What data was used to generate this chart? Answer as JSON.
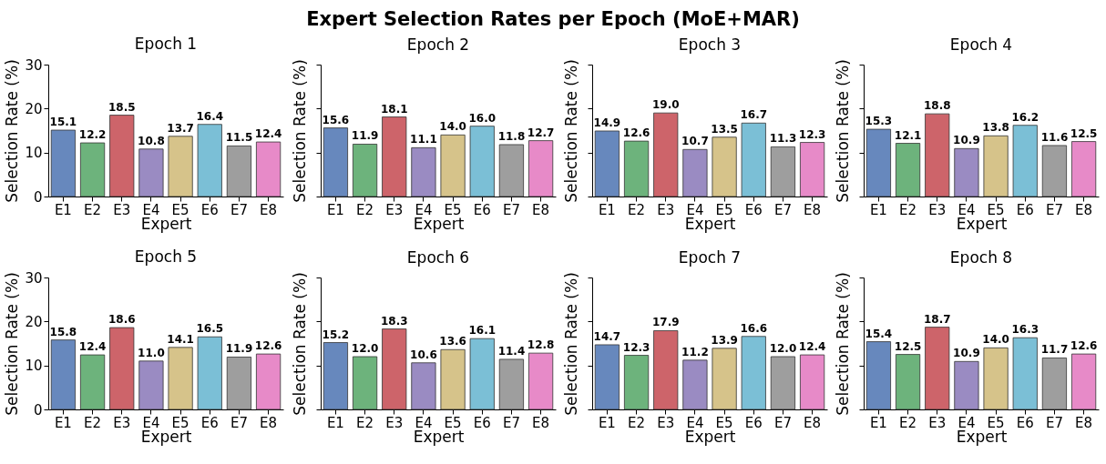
{
  "chart_data": [
    {
      "type": "bar",
      "title": "Epoch 1",
      "annotations": [
        "Expert Selection Rates per Epoch (MoE+MAR)"
      ],
      "xlabel": "Expert",
      "ylabel": "Selection Rate (%)",
      "categories": [
        "E1",
        "E2",
        "E3",
        "E4",
        "E5",
        "E6",
        "E7",
        "E8"
      ],
      "values": [
        15.1,
        12.2,
        18.5,
        10.8,
        13.7,
        16.4,
        11.5,
        12.4
      ],
      "value_labels": [
        "15.1",
        "12.2",
        "18.5",
        "10.8",
        "13.7",
        "16.4",
        "11.5",
        "12.4"
      ],
      "colors": [
        "#6788bd",
        "#6db37c",
        "#cd646a",
        "#9a8bc2",
        "#d6c38a",
        "#7bbfd6",
        "#9e9e9e",
        "#e78ac8"
      ],
      "ylim": [
        0,
        30
      ],
      "yticks": [
        0,
        10,
        20,
        30
      ]
    },
    {
      "type": "bar",
      "title": "Epoch 2",
      "xlabel": "Expert",
      "ylabel": "Selection Rate (%)",
      "categories": [
        "E1",
        "E2",
        "E3",
        "E4",
        "E5",
        "E6",
        "E7",
        "E8"
      ],
      "values": [
        15.6,
        11.9,
        18.1,
        11.1,
        14.0,
        16.0,
        11.8,
        12.7
      ],
      "value_labels": [
        "15.6",
        "11.9",
        "18.1",
        "11.1",
        "14.0",
        "16.0",
        "11.8",
        "12.7"
      ],
      "colors": [
        "#6788bd",
        "#6db37c",
        "#cd646a",
        "#9a8bc2",
        "#d6c38a",
        "#7bbfd6",
        "#9e9e9e",
        "#e78ac8"
      ],
      "ylim": [
        0,
        30
      ],
      "yticks": [
        0,
        10,
        20,
        30
      ],
      "tick_labels": "x"
    },
    {
      "type": "bar",
      "title": "Epoch 3",
      "xlabel": "Expert",
      "ylabel": "Selection Rate (%)",
      "categories": [
        "E1",
        "E2",
        "E3",
        "E4",
        "E5",
        "E6",
        "E7",
        "E8"
      ],
      "values": [
        14.9,
        12.6,
        19.0,
        10.7,
        13.5,
        16.7,
        11.3,
        12.3
      ],
      "value_labels": [
        "14.9",
        "12.6",
        "19.0",
        "10.7",
        "13.5",
        "16.7",
        "11.3",
        "12.3"
      ],
      "colors": [
        "#6788bd",
        "#6db37c",
        "#cd646a",
        "#9a8bc2",
        "#d6c38a",
        "#7bbfd6",
        "#9e9e9e",
        "#e78ac8"
      ],
      "ylim": [
        0,
        30
      ],
      "yticks": [
        0,
        10,
        20,
        30
      ],
      "tick_labels": "x"
    },
    {
      "type": "bar",
      "title": "Epoch 4",
      "xlabel": "Expert",
      "ylabel": "Selection Rate (%)",
      "categories": [
        "E1",
        "E2",
        "E3",
        "E4",
        "E5",
        "E6",
        "E7",
        "E8"
      ],
      "values": [
        15.3,
        12.1,
        18.8,
        10.9,
        13.8,
        16.2,
        11.6,
        12.5
      ],
      "value_labels": [
        "15.3",
        "12.1",
        "18.8",
        "10.9",
        "13.8",
        "16.2",
        "11.6",
        "12.5"
      ],
      "colors": [
        "#6788bd",
        "#6db37c",
        "#cd646a",
        "#9a8bc2",
        "#d6c38a",
        "#7bbfd6",
        "#9e9e9e",
        "#e78ac8"
      ],
      "ylim": [
        0,
        30
      ],
      "yticks": [
        0,
        10,
        20,
        30
      ],
      "tick_labels": "x"
    },
    {
      "type": "bar",
      "title": "Epoch 5",
      "xlabel": "Expert",
      "ylabel": "Selection Rate (%)",
      "categories": [
        "E1",
        "E2",
        "E3",
        "E4",
        "E5",
        "E6",
        "E7",
        "E8"
      ],
      "values": [
        15.8,
        12.4,
        18.6,
        11.0,
        14.1,
        16.5,
        11.9,
        12.6
      ],
      "value_labels": [
        "15.8",
        "12.4",
        "18.6",
        "11.0",
        "14.1",
        "16.5",
        "11.9",
        "12.6"
      ],
      "colors": [
        "#6788bd",
        "#6db37c",
        "#cd646a",
        "#9a8bc2",
        "#d6c38a",
        "#7bbfd6",
        "#9e9e9e",
        "#e78ac8"
      ],
      "ylim": [
        0,
        30
      ],
      "yticks": [
        0,
        10,
        20,
        30
      ]
    },
    {
      "type": "bar",
      "title": "Epoch 6",
      "xlabel": "Expert",
      "ylabel": "Selection Rate (%)",
      "categories": [
        "E1",
        "E2",
        "E3",
        "E4",
        "E5",
        "E6",
        "E7",
        "E8"
      ],
      "values": [
        15.2,
        12.0,
        18.3,
        10.6,
        13.6,
        16.1,
        11.4,
        12.8
      ],
      "value_labels": [
        "15.2",
        "12.0",
        "18.3",
        "10.6",
        "13.6",
        "16.1",
        "11.4",
        "12.8"
      ],
      "colors": [
        "#6788bd",
        "#6db37c",
        "#cd646a",
        "#9a8bc2",
        "#d6c38a",
        "#7bbfd6",
        "#9e9e9e",
        "#e78ac8"
      ],
      "ylim": [
        0,
        30
      ],
      "yticks": [
        0,
        10,
        20,
        30
      ],
      "tick_labels": "x"
    },
    {
      "type": "bar",
      "title": "Epoch 7",
      "xlabel": "Expert",
      "ylabel": "Selection Rate (%)",
      "categories": [
        "E1",
        "E2",
        "E3",
        "E4",
        "E5",
        "E6",
        "E7",
        "E8"
      ],
      "values": [
        14.7,
        12.3,
        17.9,
        11.2,
        13.9,
        16.6,
        12.0,
        12.4
      ],
      "value_labels": [
        "14.7",
        "12.3",
        "17.9",
        "11.2",
        "13.9",
        "16.6",
        "12.0",
        "12.4"
      ],
      "colors": [
        "#6788bd",
        "#6db37c",
        "#cd646a",
        "#9a8bc2",
        "#d6c38a",
        "#7bbfd6",
        "#9e9e9e",
        "#e78ac8"
      ],
      "ylim": [
        0,
        30
      ],
      "yticks": [
        0,
        10,
        20,
        30
      ],
      "tick_labels": "x"
    },
    {
      "type": "bar",
      "title": "Epoch 8",
      "xlabel": "Expert",
      "ylabel": "Selection Rate (%)",
      "categories": [
        "E1",
        "E2",
        "E3",
        "E4",
        "E5",
        "E6",
        "E7",
        "E8"
      ],
      "values": [
        15.4,
        12.5,
        18.7,
        10.9,
        14.0,
        16.3,
        11.7,
        12.6
      ],
      "value_labels": [
        "15.4",
        "12.5",
        "18.7",
        "10.9",
        "14.0",
        "16.3",
        "11.7",
        "12.6"
      ],
      "colors": [
        "#6788bd",
        "#6db37c",
        "#cd646a",
        "#9a8bc2",
        "#d6c38a",
        "#7bbfd6",
        "#9e9e9e",
        "#e78ac8"
      ],
      "ylim": [
        0,
        30
      ],
      "yticks": [
        0,
        10,
        20,
        30
      ],
      "tick_labels": "x"
    }
  ]
}
